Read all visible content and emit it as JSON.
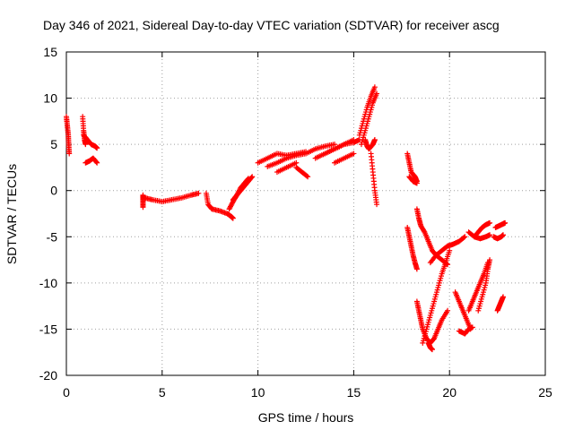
{
  "chart_data": {
    "type": "scatter",
    "title": "Day 346 of 2021, Sidereal Day-to-day VTEC variation (SDTVAR) for receiver ascg",
    "xlabel": "GPS time / hours",
    "ylabel": "SDTVAR / TECUs",
    "xlim": [
      0,
      25
    ],
    "ylim": [
      -20,
      15
    ],
    "xticks": [
      0,
      5,
      10,
      15,
      20,
      25
    ],
    "yticks": [
      -20,
      -15,
      -10,
      -5,
      0,
      5,
      10,
      15
    ],
    "grid": true,
    "marker": "plus",
    "color": "#ff0000",
    "segments": [
      {
        "x": [
          0.0,
          0.05,
          0.1,
          0.12,
          0.15
        ],
        "y": [
          8.0,
          7.0,
          6.0,
          5.0,
          4.0
        ]
      },
      {
        "x": [
          0.85,
          0.9,
          0.95,
          1.0
        ],
        "y": [
          8.0,
          6.5,
          5.5,
          5.0
        ]
      },
      {
        "x": [
          0.9,
          1.1,
          1.3,
          1.5,
          1.6
        ],
        "y": [
          6.0,
          5.5,
          5.0,
          4.8,
          4.6
        ]
      },
      {
        "x": [
          1.0,
          1.2,
          1.4,
          1.6
        ],
        "y": [
          3.0,
          3.2,
          3.5,
          3.0
        ]
      },
      {
        "x": [
          4.0,
          4.0,
          4.0
        ],
        "y": [
          -0.5,
          -1.0,
          -1.8
        ]
      },
      {
        "x": [
          4.1,
          4.5,
          5.0,
          5.5,
          6.0,
          6.5,
          6.9
        ],
        "y": [
          -0.8,
          -1.0,
          -1.2,
          -1.0,
          -0.8,
          -0.5,
          -0.3
        ]
      },
      {
        "x": [
          7.3,
          7.4,
          7.6,
          8.0,
          8.4,
          8.6,
          8.7
        ],
        "y": [
          -0.3,
          -1.5,
          -2.0,
          -2.2,
          -2.5,
          -2.8,
          -3.0
        ]
      },
      {
        "x": [
          8.5,
          8.7,
          8.9,
          9.1,
          9.3,
          9.5
        ],
        "y": [
          -2.0,
          -1.2,
          -0.5,
          0.3,
          0.8,
          1.3
        ]
      },
      {
        "x": [
          8.7,
          8.9,
          9.1,
          9.3,
          9.5,
          9.7
        ],
        "y": [
          -1.0,
          -0.5,
          0.0,
          0.5,
          1.0,
          1.5
        ]
      },
      {
        "x": [
          10.0,
          10.5,
          11.0,
          11.5,
          12.0,
          12.5
        ],
        "y": [
          3.0,
          3.5,
          4.0,
          3.8,
          4.0,
          4.2
        ]
      },
      {
        "x": [
          10.5,
          11.0,
          11.5,
          12.0,
          12.5,
          13.0,
          13.5,
          14.0
        ],
        "y": [
          2.6,
          3.0,
          3.5,
          3.8,
          4.0,
          4.5,
          4.8,
          5.0
        ]
      },
      {
        "x": [
          11.0,
          11.5,
          12.0
        ],
        "y": [
          2.0,
          2.5,
          3.0
        ]
      },
      {
        "x": [
          12.0,
          12.3,
          12.6
        ],
        "y": [
          2.5,
          2.0,
          1.5
        ]
      },
      {
        "x": [
          13.0,
          13.5,
          14.0,
          14.5,
          15.0
        ],
        "y": [
          3.5,
          4.0,
          4.5,
          5.0,
          5.5
        ]
      },
      {
        "x": [
          13.5,
          14.0,
          14.5,
          15.0,
          15.3
        ],
        "y": [
          4.0,
          4.5,
          5.0,
          5.2,
          5.5
        ]
      },
      {
        "x": [
          14.0,
          14.5,
          15.0
        ],
        "y": [
          3.0,
          3.5,
          4.0
        ]
      },
      {
        "x": [
          15.3,
          15.5,
          15.7,
          15.9,
          16.1
        ],
        "y": [
          6.0,
          7.5,
          9.0,
          10.2,
          11.2
        ]
      },
      {
        "x": [
          15.4,
          15.6,
          15.8,
          16.0,
          16.2
        ],
        "y": [
          5.0,
          6.5,
          8.0,
          9.5,
          10.5
        ]
      },
      {
        "x": [
          15.6,
          15.7,
          15.8,
          16.0,
          16.1
        ],
        "y": [
          5.5,
          4.8,
          4.5,
          5.0,
          5.5
        ]
      },
      {
        "x": [
          15.9,
          16.0,
          16.1,
          16.2
        ],
        "y": [
          4.0,
          2.0,
          0.0,
          -1.5
        ]
      },
      {
        "x": [
          17.8,
          17.9,
          18.0,
          18.2,
          18.3
        ],
        "y": [
          4.0,
          3.0,
          2.0,
          1.5,
          1.0
        ]
      },
      {
        "x": [
          17.9,
          18.1,
          18.3
        ],
        "y": [
          1.5,
          1.0,
          0.8
        ]
      },
      {
        "x": [
          17.8,
          17.9,
          18.0,
          18.1,
          18.2,
          18.3
        ],
        "y": [
          -4.0,
          -5.0,
          -6.0,
          -7.0,
          -7.8,
          -8.5
        ]
      },
      {
        "x": [
          18.3,
          18.4,
          18.5,
          18.7,
          18.9,
          19.1,
          19.3,
          19.6,
          19.9
        ],
        "y": [
          -2.0,
          -3.0,
          -3.8,
          -4.5,
          -5.5,
          -6.5,
          -7.0,
          -7.5,
          -8.0
        ]
      },
      {
        "x": [
          18.3,
          18.4,
          18.5,
          18.6,
          18.8,
          19.0,
          19.2,
          19.4,
          19.6,
          19.9
        ],
        "y": [
          -12.0,
          -13.0,
          -14.0,
          -15.0,
          -16.0,
          -16.5,
          -16.0,
          -15.0,
          -14.0,
          -13.0
        ]
      },
      {
        "x": [
          18.6,
          18.8,
          19.0,
          19.2,
          19.4,
          19.6,
          19.8,
          20.0
        ],
        "y": [
          -16.5,
          -15.0,
          -13.5,
          -12.0,
          -10.5,
          -9.0,
          -7.8,
          -6.5
        ]
      },
      {
        "x": [
          18.9,
          19.0,
          19.1
        ],
        "y": [
          -16.5,
          -17.0,
          -17.2
        ]
      },
      {
        "x": [
          19.0,
          19.3,
          19.6,
          19.9,
          20.2,
          20.5,
          20.8
        ],
        "y": [
          -7.8,
          -7.0,
          -6.5,
          -6.0,
          -5.8,
          -5.5,
          -5.0
        ]
      },
      {
        "x": [
          20.3,
          20.5,
          20.7,
          20.9,
          21.1
        ],
        "y": [
          -11.0,
          -12.0,
          -13.0,
          -14.0,
          -15.0
        ]
      },
      {
        "x": [
          20.5,
          20.8,
          21.0,
          21.2
        ],
        "y": [
          -15.2,
          -15.5,
          -15.0,
          -14.8
        ]
      },
      {
        "x": [
          21.0,
          21.2,
          21.4,
          21.6,
          21.8,
          22.0
        ],
        "y": [
          -13.0,
          -12.0,
          -11.0,
          -10.0,
          -9.0,
          -7.8
        ]
      },
      {
        "x": [
          21.5,
          21.7,
          21.9,
          22.0,
          22.1
        ],
        "y": [
          -13.0,
          -11.5,
          -10.0,
          -8.5,
          -7.5
        ]
      },
      {
        "x": [
          21.3,
          21.5,
          21.7,
          21.9,
          22.1
        ],
        "y": [
          -5.0,
          -4.5,
          -4.0,
          -3.7,
          -3.5
        ]
      },
      {
        "x": [
          21.0,
          21.3,
          21.6,
          21.9,
          22.1
        ],
        "y": [
          -4.5,
          -5.0,
          -5.2,
          -5.0,
          -4.8
        ]
      },
      {
        "x": [
          22.4,
          22.6,
          22.8,
          22.9
        ],
        "y": [
          -4.0,
          -3.8,
          -3.6,
          -3.5
        ]
      },
      {
        "x": [
          22.3,
          22.5,
          22.7,
          22.8
        ],
        "y": [
          -5.0,
          -5.2,
          -5.0,
          -4.8
        ]
      },
      {
        "x": [
          22.5,
          22.6,
          22.7,
          22.8
        ],
        "y": [
          -13.0,
          -12.5,
          -12.0,
          -11.5
        ]
      }
    ]
  }
}
